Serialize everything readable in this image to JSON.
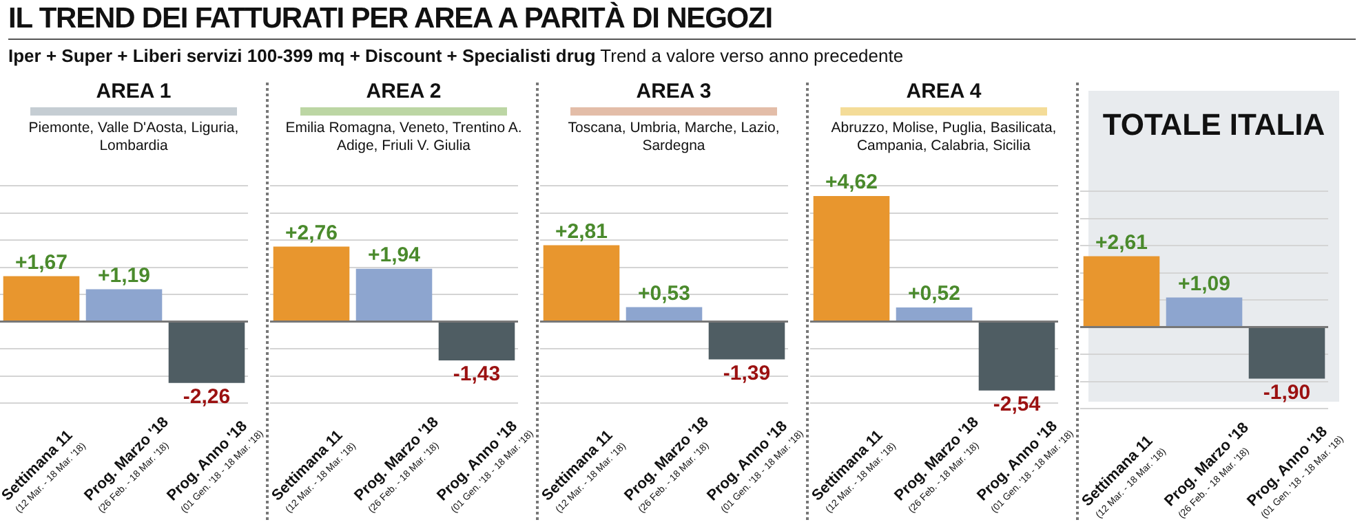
{
  "chart_data": [
    {
      "type": "other",
      "title": "IL TREND DEI FATTURATI PER AREA A PARITÀ DI NEGOZI",
      "subtitle": "Iper + Super + Liberi servizi 100-399 mq + Discount + Specialisti drug",
      "annotations": [
        "Trend a valore verso anno precedente"
      ]
    },
    {
      "type": "bar",
      "title": "AREA 1",
      "subtitle": "Piemonte, Valle D'Aosta, Liguria, Lombardia",
      "categories": [
        "Settimana 11 (12 Mar. - 18 Mar. '18)",
        "Prog. Marzo '18 (26 Feb. - 18 Mar. '18)",
        "Prog. Anno '18 (01 Gen. '18 - 18 Mar. '18)"
      ],
      "values": [
        1.67,
        1.19,
        -2.26
      ],
      "colors": [
        "#e8962e",
        "#8da5cf",
        "#4f5d63"
      ],
      "value_labels": [
        "+1,67",
        "+1,19",
        "-2,26"
      ],
      "ylim": [
        -3,
        5
      ],
      "grid": "y",
      "tick_labels": "x"
    },
    {
      "type": "bar",
      "title": "AREA 2",
      "subtitle": "Emilia Romagna, Veneto, Trentino A. Adige, Friuli V. Giulia",
      "categories": [
        "Settimana 11 (12 Mar. - 18 Mar. '18)",
        "Prog. Marzo '18 (26 Feb. - 18 Mar. '18)",
        "Prog. Anno '18 (01 Gen. '18 - 18 Mar. '18)"
      ],
      "values": [
        2.76,
        1.94,
        -1.43
      ],
      "colors": [
        "#e8962e",
        "#8da5cf",
        "#4f5d63"
      ],
      "value_labels": [
        "+2,76",
        "+1,94",
        "-1,43"
      ],
      "ylim": [
        -3,
        5
      ],
      "grid": "y",
      "tick_labels": "x"
    },
    {
      "type": "bar",
      "title": "AREA 3",
      "subtitle": "Toscana, Umbria, Marche, Lazio, Sardegna",
      "categories": [
        "Settimana 11 (12 Mar. - 18 Mar. '18)",
        "Prog. Marzo '18 (26 Feb. - 18 Mar. '18)",
        "Prog. Anno '18 (01 Gen. '18 - 18 Mar. '18)"
      ],
      "values": [
        2.81,
        0.53,
        -1.39
      ],
      "colors": [
        "#e8962e",
        "#8da5cf",
        "#4f5d63"
      ],
      "value_labels": [
        "+2,81",
        "+0,53",
        "-1,39"
      ],
      "ylim": [
        -3,
        5
      ],
      "grid": "y",
      "tick_labels": "x"
    },
    {
      "type": "bar",
      "title": "AREA 4",
      "subtitle": "Abruzzo, Molise, Puglia, Basilicata, Campania, Calabria, Sicilia",
      "categories": [
        "Settimana 11 (12 Mar. - 18 Mar. '18)",
        "Prog. Marzo '18 (26 Feb. - 18 Mar. '18)",
        "Prog. Anno '18 (01 Gen. '18 - 18 Mar. '18)"
      ],
      "values": [
        4.62,
        0.52,
        -2.54
      ],
      "colors": [
        "#e8962e",
        "#8da5cf",
        "#4f5d63"
      ],
      "value_labels": [
        "+4,62",
        "+0,52",
        "-2,54"
      ],
      "ylim": [
        -3,
        5
      ],
      "grid": "y",
      "tick_labels": "x"
    },
    {
      "type": "bar",
      "title": "TOTALE ITALIA",
      "categories": [
        "Settimana 11 (12 Mar. - 18 Mar. '18)",
        "Prog. Marzo '18 (26 Feb. - 18 Mar. '18)",
        "Prog. Anno '18 (01 Gen. '18 - 18 Mar. '18)"
      ],
      "values": [
        2.61,
        1.09,
        -1.9
      ],
      "colors": [
        "#e8962e",
        "#8da5cf",
        "#4f5d63"
      ],
      "value_labels": [
        "+2,61",
        "+1,09",
        "-1,90"
      ],
      "ylim": [
        -3,
        5
      ],
      "grid": "y",
      "tick_labels": "x"
    }
  ]
}
